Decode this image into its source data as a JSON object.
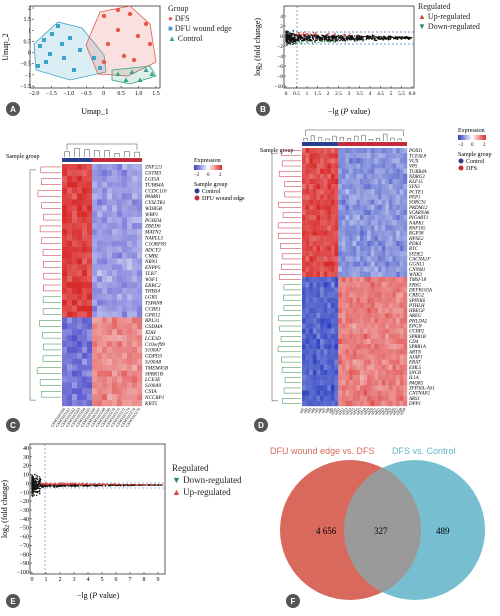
{
  "panels": [
    "A",
    "B",
    "C",
    "D",
    "E",
    "F"
  ],
  "panelA": {
    "xlabel": "Umap_1",
    "ylabel": "Umap_2",
    "xticks": [
      "−2.0",
      "−1.5",
      "−1.0",
      "−0.5",
      "0",
      "0.5",
      "1.0",
      "1.5"
    ],
    "yticks": [
      "2",
      "1.5",
      "1",
      "0.5",
      "0",
      "−0.5",
      "−1",
      "−1.5"
    ],
    "legend_title": "Group",
    "legend": [
      {
        "label": "DFS",
        "color": "#e35a4c",
        "shape": "circle"
      },
      {
        "label": "DFU wound edge",
        "color": "#3ea3c9",
        "shape": "square"
      },
      {
        "label": "Control",
        "color": "#3aa58a",
        "shape": "triangle"
      }
    ]
  },
  "panelB": {
    "ylabel_prefix": "log",
    "ylabel_sub": "2",
    "ylabel_suffix": " (fold change)",
    "xlabel_prefix": "−lg (",
    "xlabel_var": "P",
    "xlabel_suffix": " value)",
    "xticks": [
      "0",
      "0.5",
      "1",
      "1.5",
      "2",
      "2.5",
      "3",
      "3.5",
      "4",
      "4.5",
      "5",
      "5.5",
      "6.0"
    ],
    "yticks": [
      "4",
      "2",
      "0",
      "−2",
      "−4",
      "−6",
      "−8",
      "−10"
    ],
    "legend_title": "Regulated",
    "legend": [
      {
        "label": "Up-regulated",
        "color": "#d9473a",
        "symbol": "▲"
      },
      {
        "label": "Down-regulated",
        "color": "#2f8a4e",
        "symbol": "▼"
      }
    ]
  },
  "panelC": {
    "sample_group_label": "Sample group",
    "expression_label": "Expression",
    "scale": [
      "−2",
      "0",
      "2"
    ],
    "group_legend": [
      {
        "label": "Control",
        "color": "#2b3e8c"
      },
      {
        "label": "DFU wound edge",
        "color": "#c52a3a"
      }
    ],
    "genes": [
      "ZNF221",
      "GSTM3",
      "LGI5A",
      "TUBB4A",
      "CCDC110",
      "PAMR1",
      "CYSLTR1",
      "WDR5B",
      "WBP1",
      "PGBD4",
      "ZBED6",
      "MATN2",
      "NAPLL5",
      "C1ORF83",
      "ADCY2",
      "CMBL",
      "NRN1",
      "ENPP5",
      "TLR7",
      "WSF1",
      "ERBC2",
      "THBS4",
      "LGR5",
      "TSPAN8",
      "CCBE1",
      "GPR12",
      "RPL31",
      "GSDMA",
      "XDH",
      "LCE3D",
      "C10orf99",
      "S100A7",
      "GDPD3",
      "S100A8",
      "TMEM45B",
      "SPRR1B",
      "LCE3E",
      "S100A9",
      "CSTA",
      "NCCRP1",
      "KRT5"
    ],
    "samples": [
      "GSM3165160",
      "GSM3165161",
      "GSM3165162",
      "GSM3165163",
      "GSM3165164",
      "GSM3165165",
      "GSM3165166",
      "GSM3165167",
      "GSM3165168",
      "GSM3165169",
      "GSM3165170",
      "GSM3165171",
      "GSM3165172",
      "GSM3165173",
      "GSM3165174",
      "GSM3165175"
    ]
  },
  "panelD": {
    "sample_group_label": "Sample group",
    "expression_label": "Expression",
    "scale": [
      "−2",
      "0",
      "2"
    ],
    "group_legend": [
      {
        "label": "Control",
        "color": "#2b3e8c"
      },
      {
        "label": "DFS",
        "color": "#c52a3a"
      }
    ],
    "genes": [
      "POXI1",
      "TCEAL8",
      "VUX",
      "VP5",
      "TUBB4A",
      "NDRG2",
      "KLF15",
      "SYN2",
      "PCTE1",
      "PEP1",
      "SORCS1",
      "PRDM12",
      "SCARNA6",
      "PIGABT1",
      "NAPK1",
      "RNF165",
      "RGP38",
      "HPSE2",
      "PDK4",
      "RTC",
      "SYDE2",
      "CACNA1F",
      "GGNL1",
      "CNNM1",
      "WNK3",
      "TMSF18",
      "EBSG",
      "DEFB103A",
      "CREG2",
      "SPINK6",
      "PTHLH",
      "HBEGF",
      "AREG",
      "PHLDA2",
      "EPGN",
      "UCBP2",
      "SPRR1B",
      "CD4",
      "SPRR1A",
      "ARTN",
      "AJAP1",
      "ERAT",
      "EML5",
      "SNCB",
      "IL1A",
      "PAQR5",
      "ZFP36L-AS1",
      "CNTNAP2",
      "ARS1",
      "DPP1"
    ],
    "samples": [
      "sd1",
      "sd2",
      "sd3",
      "sd4",
      "sd5",
      "sd6",
      "sd7",
      "sd8",
      "sd9",
      "sd10",
      "sd11",
      "sd12",
      "sd13",
      "sd14",
      "sd15",
      "sd16",
      "sd17",
      "sd18",
      "sd19",
      "sd20",
      "sd21",
      "sd22",
      "sd23",
      "sd24",
      "sd25",
      "sd26",
      "sd27",
      "sd28",
      "sd29"
    ]
  },
  "panelE": {
    "ylabel_prefix": "log",
    "ylabel_sub": "2",
    "ylabel_suffix": " (fold change)",
    "xlabel_prefix": "−lg (",
    "xlabel_var": "P",
    "xlabel_suffix": " value)",
    "xticks": [
      "0",
      "1",
      "2",
      "3",
      "4",
      "5",
      "6",
      "7",
      "8",
      "9"
    ],
    "yticks": [
      "40",
      "30",
      "20",
      "10",
      "0",
      "−10",
      "−20",
      "−30",
      "−40",
      "−50",
      "−60",
      "−70",
      "−80",
      "−90",
      "−100"
    ],
    "legend_title": "Regulated",
    "legend": [
      {
        "label": "Down-regulated",
        "color": "#2f8a4e",
        "symbol": "▼"
      },
      {
        "label": "Up-regulated",
        "color": "#d9473a",
        "symbol": "▲"
      }
    ]
  },
  "panelF": {
    "left_title": "DFU wound edge vs. DFS",
    "right_title": "DFS vs. Control",
    "left_color": "#d9695c",
    "right_color": "#5fb4c8",
    "left_only": "4 656",
    "overlap": "327",
    "right_only": "489"
  }
}
